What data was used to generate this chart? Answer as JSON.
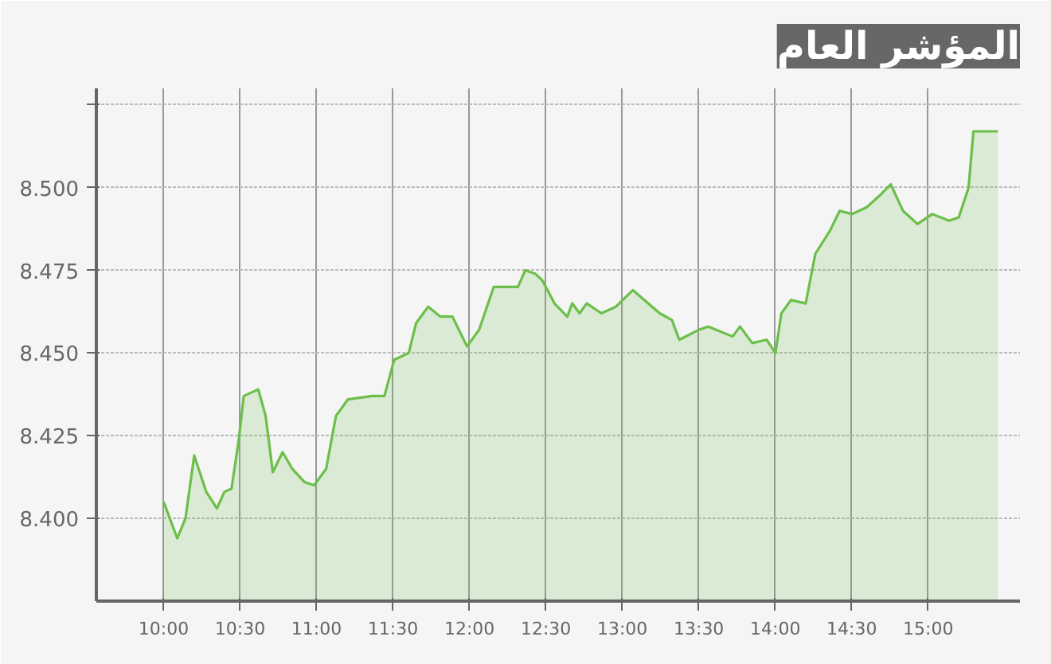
{
  "chart_data": {
    "type": "area",
    "title": "المؤشر العام",
    "color": "#6cbf4a",
    "grid": true,
    "x": [
      10.0,
      10.089,
      10.143,
      10.2,
      10.279,
      10.349,
      10.397,
      10.444,
      10.492,
      10.524,
      10.619,
      10.667,
      10.714,
      10.778,
      10.841,
      10.921,
      10.984,
      11.063,
      11.127,
      11.206,
      11.365,
      11.444,
      11.508,
      11.603,
      11.651,
      11.73,
      11.81,
      11.889,
      11.984,
      12.063,
      12.159,
      12.317,
      12.365,
      12.429,
      12.476,
      12.556,
      12.576,
      12.64,
      12.672,
      12.72,
      12.767,
      12.863,
      12.958,
      13.069,
      13.244,
      13.324,
      13.372,
      13.499,
      13.562,
      13.721,
      13.769,
      13.849,
      13.944,
      14.001,
      14.04,
      14.103,
      14.199,
      14.262,
      14.358,
      14.421,
      14.501,
      14.596,
      14.692,
      14.755,
      14.835,
      14.93,
      15.026,
      15.137,
      15.2,
      15.264,
      15.296,
      15.455
    ],
    "values": [
      8.405,
      8.394,
      8.4,
      8.419,
      8.408,
      8.403,
      8.408,
      8.409,
      8.424,
      8.437,
      8.439,
      8.431,
      8.414,
      8.42,
      8.415,
      8.411,
      8.41,
      8.415,
      8.431,
      8.436,
      8.437,
      8.437,
      8.448,
      8.45,
      8.459,
      8.464,
      8.461,
      8.461,
      8.452,
      8.457,
      8.47,
      8.47,
      8.475,
      8.474,
      8.472,
      8.465,
      8.464,
      8.461,
      8.465,
      8.462,
      8.465,
      8.462,
      8.464,
      8.469,
      8.462,
      8.46,
      8.454,
      8.457,
      8.458,
      8.455,
      8.458,
      8.453,
      8.454,
      8.45,
      8.462,
      8.466,
      8.465,
      8.48,
      8.487,
      8.493,
      8.492,
      8.494,
      8.498,
      8.501,
      8.493,
      8.489,
      8.492,
      8.49,
      8.491,
      8.5,
      8.517,
      8.517
    ],
    "xlim": [
      9.56,
      15.6
    ],
    "ylim": [
      8.375,
      8.53
    ],
    "xticks": [
      {
        "value": 10,
        "label": "10:00"
      },
      {
        "value": 10.5,
        "label": "10:30"
      },
      {
        "value": 11,
        "label": "11:00"
      },
      {
        "value": 11.5,
        "label": "11:30"
      },
      {
        "value": 12,
        "label": "12:00"
      },
      {
        "value": 12.5,
        "label": "12:30"
      },
      {
        "value": 13,
        "label": "13:00"
      },
      {
        "value": 13.5,
        "label": "13:30"
      },
      {
        "value": 14,
        "label": "14:00"
      },
      {
        "value": 14.5,
        "label": "14:30"
      },
      {
        "value": 15,
        "label": "15:00"
      }
    ],
    "yticks": [
      {
        "value": 8.4,
        "label": "8.400"
      },
      {
        "value": 8.425,
        "label": "8.425"
      },
      {
        "value": 8.45,
        "label": "8.450"
      },
      {
        "value": 8.475,
        "label": "8.475"
      },
      {
        "value": 8.5,
        "label": "8.500"
      },
      {
        "value": 8.525,
        "label": null
      }
    ]
  }
}
